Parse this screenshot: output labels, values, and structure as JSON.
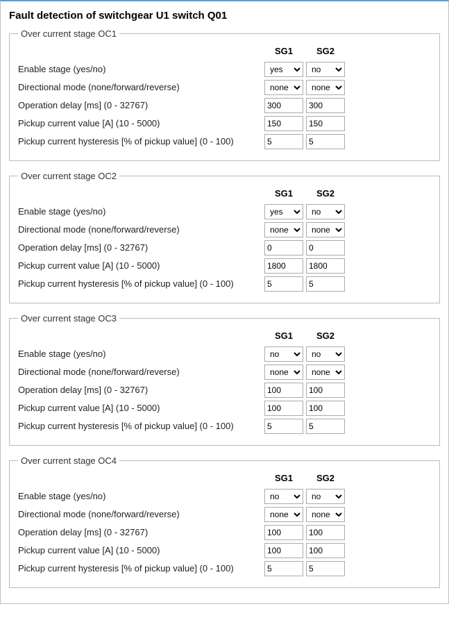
{
  "title": "Fault detection of switchgear U1 switch Q01",
  "col_sg1": "SG1",
  "col_sg2": "SG2",
  "row_labels": {
    "enable": "Enable stage (yes/no)",
    "dir": "Directional mode (none/forward/reverse)",
    "delay": "Operation delay [ms] (0 - 32767)",
    "pickup": "Pickup current value [A] (10 - 5000)",
    "hyst": "Pickup current hysteresis [% of pickup value] (0 - 100)"
  },
  "sections": {
    "oc1": {
      "legend": "Over current stage OC1",
      "sg1": {
        "enable": "yes",
        "dir": "none",
        "delay": "300",
        "pickup": "150",
        "hyst": "5"
      },
      "sg2": {
        "enable": "no",
        "dir": "none",
        "delay": "300",
        "pickup": "150",
        "hyst": "5"
      }
    },
    "oc2": {
      "legend": "Over current stage OC2",
      "sg1": {
        "enable": "yes",
        "dir": "none",
        "delay": "0",
        "pickup": "1800",
        "hyst": "5"
      },
      "sg2": {
        "enable": "no",
        "dir": "none",
        "delay": "0",
        "pickup": "1800",
        "hyst": "5"
      }
    },
    "oc3": {
      "legend": "Over current stage OC3",
      "sg1": {
        "enable": "no",
        "dir": "none",
        "delay": "100",
        "pickup": "100",
        "hyst": "5"
      },
      "sg2": {
        "enable": "no",
        "dir": "none",
        "delay": "100",
        "pickup": "100",
        "hyst": "5"
      }
    },
    "oc4": {
      "legend": "Over current stage OC4",
      "sg1": {
        "enable": "no",
        "dir": "none",
        "delay": "100",
        "pickup": "100",
        "hyst": "5"
      },
      "sg2": {
        "enable": "no",
        "dir": "none",
        "delay": "100",
        "pickup": "100",
        "hyst": "5"
      }
    }
  }
}
